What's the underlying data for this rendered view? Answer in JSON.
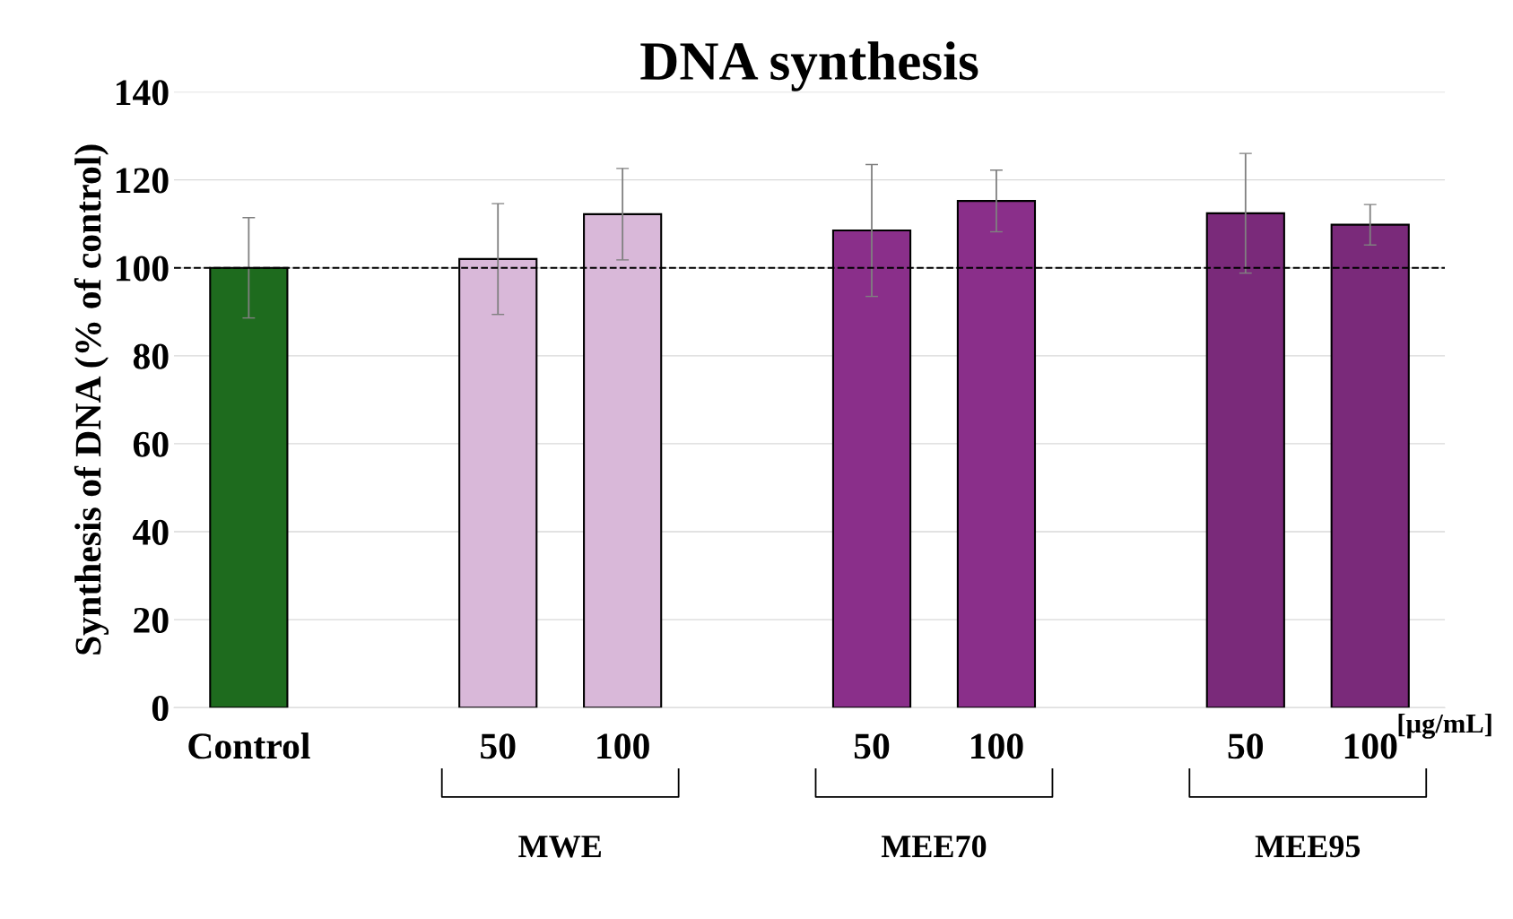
{
  "chart_data": {
    "type": "bar",
    "title": "DNA synthesis",
    "ylabel": "Synthesis of DNA (% of control)",
    "categories": [
      "Control",
      null,
      "50",
      "100",
      null,
      "50",
      "100",
      null,
      "50",
      "100"
    ],
    "values": [
      100,
      null,
      102,
      112.2,
      null,
      108.5,
      115.2,
      null,
      112.4,
      109.8
    ],
    "errors": [
      11.4,
      null,
      12.6,
      10.4,
      null,
      15,
      7,
      null,
      13.6,
      4.6
    ],
    "colors": [
      "#1e6b1e",
      null,
      "#d9b8d9",
      "#d9b8d9",
      null,
      "#8a2f8a",
      "#8a2f8a",
      null,
      "#7a2a7a",
      "#7a2a7a"
    ],
    "ylim": [
      0,
      140
    ],
    "yticks": [
      0,
      20,
      40,
      60,
      80,
      100,
      120,
      140
    ],
    "grid": "y",
    "ref_lines": [
      {
        "axis": "y",
        "value": 100,
        "line_style": "dashed",
        "color": "#000000"
      }
    ],
    "annotations": [
      "MWE",
      "MEE70",
      "MEE95",
      "[µg/mL]"
    ]
  }
}
